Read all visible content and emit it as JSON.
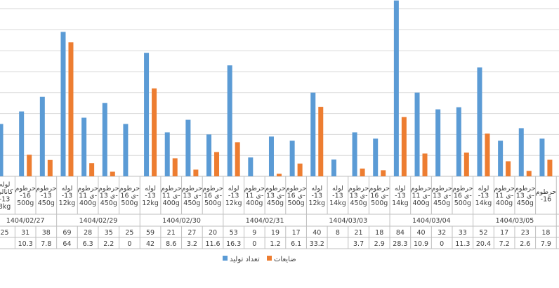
{
  "chart_data": {
    "type": "bar",
    "orientation": "vertical",
    "grid": true,
    "legend_position": "bottom",
    "ylim": [
      0,
      85
    ],
    "colors": {
      "production": "#5B9BD5",
      "waste": "#ED7D31",
      "grid": "#D9D9D9",
      "axis": "#BFBFBF",
      "text": "#404040"
    },
    "series": [
      {
        "name": "تعداد تولید",
        "color": "#5B9BD5",
        "key": "production"
      },
      {
        "name": "ضایعات",
        "color": "#ED7D31",
        "key": "waste"
      }
    ],
    "groups": [
      {
        "date": "1404/02/27",
        "items": [
          {
            "label": [
              "لوله",
              "کانالی",
              "-13",
              "8kg"
            ],
            "production": 25,
            "production_label": "25",
            "waste": null,
            "waste_label": ""
          },
          {
            "label": [
              "حرطوم",
              "-16",
              "500g"
            ],
            "production": 31,
            "production_label": "31",
            "waste": 10.3,
            "waste_label": "10.3"
          },
          {
            "label": [
              "حرطوم",
              "-13",
              "450g"
            ],
            "production": 38,
            "production_label": "38",
            "waste": 7.8,
            "waste_label": "7.8"
          }
        ]
      },
      {
        "date": "1404/02/29",
        "items": [
          {
            "label": [
              "لوله",
              "-13",
              "12kg"
            ],
            "production": 69,
            "production_label": "69",
            "waste": 64,
            "waste_label": "64"
          },
          {
            "label": [
              "حرطوم",
              "ی 11-",
              "400g"
            ],
            "production": 28,
            "production_label": "28",
            "waste": 6.3,
            "waste_label": "6.3"
          },
          {
            "label": [
              "حرطوم",
              "ی 13-",
              "450g"
            ],
            "production": 35,
            "production_label": "35",
            "waste": 2.2,
            "waste_label": "2.2"
          },
          {
            "label": [
              "حرطوم",
              "ی 16-",
              "500g"
            ],
            "production": 25,
            "production_label": "25",
            "waste": 0,
            "waste_label": "0"
          }
        ]
      },
      {
        "date": "1404/02/30",
        "items": [
          {
            "label": [
              "لوله",
              "-13",
              "12kg"
            ],
            "production": 59,
            "production_label": "59",
            "waste": 42,
            "waste_label": "42"
          },
          {
            "label": [
              "حرطوم",
              "ی 11-",
              "400g"
            ],
            "production": 21,
            "production_label": "21",
            "waste": 8.6,
            "waste_label": "8.6"
          },
          {
            "label": [
              "حرطوم",
              "ی 13-",
              "450g"
            ],
            "production": 27,
            "production_label": "27",
            "waste": 3.2,
            "waste_label": "3.2"
          },
          {
            "label": [
              "حرطوم",
              "ی 16-",
              "500g"
            ],
            "production": 20,
            "production_label": "20",
            "waste": 11.6,
            "waste_label": "11.6"
          }
        ]
      },
      {
        "date": "1404/02/31",
        "items": [
          {
            "label": [
              "لوله",
              "-13",
              "12kg"
            ],
            "production": 53,
            "production_label": "53",
            "waste": 16.3,
            "waste_label": "16.3"
          },
          {
            "label": [
              "حرطوم",
              "ی 11-",
              "400g"
            ],
            "production": 9,
            "production_label": "9",
            "waste": 0,
            "waste_label": "0"
          },
          {
            "label": [
              "حرطوم",
              "ی 13-",
              "450g"
            ],
            "production": 19,
            "production_label": "19",
            "waste": 1.2,
            "waste_label": "1.2"
          },
          {
            "label": [
              "حرطوم",
              "ی 16-",
              "500g"
            ],
            "production": 17,
            "production_label": "17",
            "waste": 6.1,
            "waste_label": "6.1"
          }
        ]
      },
      {
        "date": "1404/03/03",
        "items": [
          {
            "label": [
              "لوله",
              "-13",
              "12kg"
            ],
            "production": 40,
            "production_label": "40",
            "waste": 33.2,
            "waste_label": "33.2"
          },
          {
            "label": [
              "لوله",
              "-13",
              "14kg"
            ],
            "production": 8,
            "production_label": "8",
            "waste": null,
            "waste_label": ""
          },
          {
            "label": [
              "حرطوم",
              "ی 13-",
              "450g"
            ],
            "production": 21,
            "production_label": "21",
            "waste": 3.7,
            "waste_label": "3.7"
          },
          {
            "label": [
              "حرطوم",
              "ی 16-",
              "500g"
            ],
            "production": 18,
            "production_label": "18",
            "waste": 2.9,
            "waste_label": "2.9"
          }
        ]
      },
      {
        "date": "1404/03/04",
        "items": [
          {
            "label": [
              "لوله",
              "-13",
              "14kg"
            ],
            "production": 84,
            "production_label": "84",
            "waste": 28.3,
            "waste_label": "28.3"
          },
          {
            "label": [
              "حرطوم",
              "ی 11-",
              "400g"
            ],
            "production": 40,
            "production_label": "40",
            "waste": 10.9,
            "waste_label": "10.9"
          },
          {
            "label": [
              "حرطوم",
              "ی 13-",
              "450g"
            ],
            "production": 32,
            "production_label": "32",
            "waste": 0,
            "waste_label": "0"
          },
          {
            "label": [
              "حرطوم",
              "ی 16-",
              "500g"
            ],
            "production": 33,
            "production_label": "33",
            "waste": 11.3,
            "waste_label": "11.3"
          }
        ]
      },
      {
        "date": "1404/03/05",
        "items": [
          {
            "label": [
              "لوله",
              "-13",
              "14kg"
            ],
            "production": 52,
            "production_label": "52",
            "waste": 20.4,
            "waste_label": "20.4"
          },
          {
            "label": [
              "حرطوم",
              "ی 11-",
              "400g"
            ],
            "production": 17,
            "production_label": "17",
            "waste": 7.2,
            "waste_label": "7.2"
          },
          {
            "label": [
              "حرطوم",
              "ی 13-",
              "450g"
            ],
            "production": 23,
            "production_label": "23",
            "waste": 2.6,
            "waste_label": "2.6"
          },
          {
            "label": [
              "حرطوم",
              "-16"
            ],
            "production": 18,
            "production_label": "18",
            "waste": 7.9,
            "waste_label": "7.9"
          }
        ]
      }
    ]
  }
}
